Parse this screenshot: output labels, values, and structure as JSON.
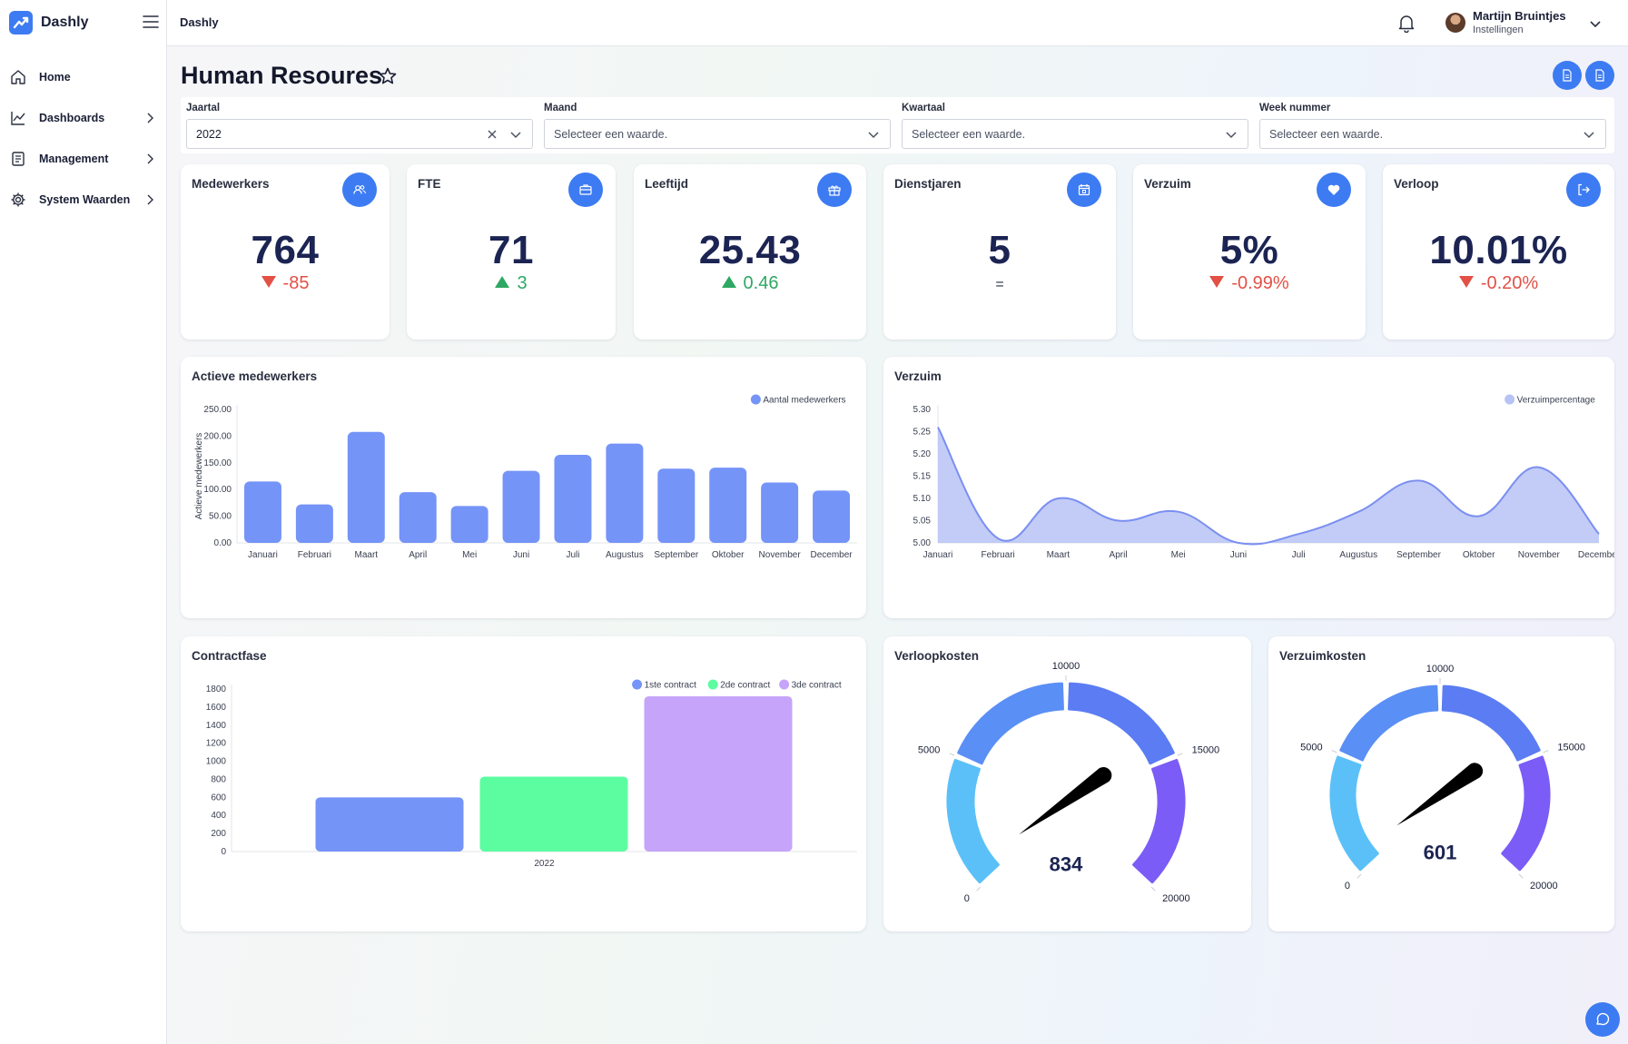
{
  "sidebar": {
    "brand": "Dashly",
    "items": [
      {
        "label": "Home",
        "icon": "home-icon"
      },
      {
        "label": "Dashboards",
        "icon": "chart-line-icon"
      },
      {
        "label": "Management",
        "icon": "document-icon"
      },
      {
        "label": "System Waarden",
        "icon": "gear-icon"
      }
    ]
  },
  "topbar": {
    "title": "Dashly",
    "user": {
      "name": "Martijn Bruintjes",
      "subtitle": "Instellingen"
    }
  },
  "page": {
    "title": "Human Resoures"
  },
  "filters": [
    {
      "label": "Jaartal",
      "value": "2022",
      "placeholder": ""
    },
    {
      "label": "Maand",
      "value": "",
      "placeholder": "Selecteer een waarde."
    },
    {
      "label": "Kwartaal",
      "value": "",
      "placeholder": "Selecteer een waarde."
    },
    {
      "label": "Week nummer",
      "value": "",
      "placeholder": "Selecteer een waarde."
    }
  ],
  "kpis": [
    {
      "title": "Medewerkers",
      "value": "764",
      "delta": "-85",
      "trend": "down",
      "icon": "users-icon"
    },
    {
      "title": "FTE",
      "value": "71",
      "delta": "3",
      "trend": "up",
      "icon": "briefcase-icon"
    },
    {
      "title": "Leeftijd",
      "value": "25.43",
      "delta": "0.46",
      "trend": "up",
      "icon": "gift-icon"
    },
    {
      "title": "Dienstjaren",
      "value": "5",
      "delta": "=",
      "trend": "equal",
      "icon": "calendar-icon"
    },
    {
      "title": "Verzuim",
      "value": "5%",
      "delta": "-0.99%",
      "trend": "down",
      "icon": "heart-icon"
    },
    {
      "title": "Verloop",
      "value": "10.01%",
      "delta": "-0.20%",
      "trend": "down",
      "icon": "logout-icon"
    }
  ],
  "colors": {
    "accent": "#3d7bf2",
    "bar": "#7594f8",
    "area": "#b7c3f5",
    "line": "#7b8ff0",
    "contract1": "#7594f8",
    "contract2": "#5cfca0",
    "contract3": "#c5a4fa",
    "up": "#2ea864",
    "down": "#e25046"
  },
  "cards": {
    "actieve": {
      "title": "Actieve medewerkers"
    },
    "verzuim": {
      "title": "Verzuim"
    },
    "contract": {
      "title": "Contractfase"
    },
    "verloopkosten": {
      "title": "Verloopkosten"
    },
    "verzuimkosten": {
      "title": "Verzuimkosten"
    }
  },
  "chart_data": [
    {
      "id": "actieve",
      "type": "bar",
      "title": "Actieve medewerkers",
      "ylabel": "Actieve medewerkers",
      "xlabel": "",
      "categories": [
        "Januari",
        "Februari",
        "Maart",
        "April",
        "Mei",
        "Juni",
        "Juli",
        "Augustus",
        "September",
        "Oktober",
        "November",
        "December"
      ],
      "series": [
        {
          "name": "Aantal medewerkers",
          "values": [
            115,
            72,
            208,
            95,
            69,
            135,
            165,
            186,
            139,
            141,
            113,
            98
          ]
        }
      ],
      "ylim": [
        0,
        250
      ],
      "yticks": [
        "0.00",
        "50.00",
        "100.00",
        "150.00",
        "200.00",
        "250.00"
      ],
      "legend": "top-right",
      "grid": false
    },
    {
      "id": "verzuim",
      "type": "area",
      "title": "Verzuim",
      "categories": [
        "Januari",
        "Februari",
        "Maart",
        "April",
        "Mei",
        "Juni",
        "Juli",
        "Augustus",
        "September",
        "Oktober",
        "November",
        "December"
      ],
      "series": [
        {
          "name": "Verzuimpercentage",
          "values": [
            5.26,
            5.01,
            5.1,
            5.05,
            5.07,
            5.0,
            5.02,
            5.07,
            5.14,
            5.06,
            5.17,
            5.02
          ]
        }
      ],
      "ylim": [
        5.0,
        5.3
      ],
      "yticks": [
        "5.00",
        "5.05",
        "5.10",
        "5.15",
        "5.20",
        "5.25",
        "5.30"
      ],
      "legend": "top-right",
      "grid": false
    },
    {
      "id": "contract",
      "type": "bar",
      "title": "Contractfase",
      "categories": [
        "2022"
      ],
      "series": [
        {
          "name": "1ste contract",
          "values": [
            600
          ]
        },
        {
          "name": "2de contract",
          "values": [
            830
          ]
        },
        {
          "name": "3de contract",
          "values": [
            1720
          ]
        }
      ],
      "ylim": [
        0,
        1800
      ],
      "yticks": [
        "0",
        "200",
        "400",
        "600",
        "800",
        "1000",
        "1200",
        "1400",
        "1600",
        "1800"
      ],
      "legend": "top-right",
      "grid": false
    },
    {
      "id": "verloopkosten",
      "type": "gauge",
      "title": "Verloopkosten",
      "value": 834,
      "value_label": "834",
      "min": 0,
      "max": 20000,
      "ticks": [
        "0",
        "5000",
        "10000",
        "15000",
        "20000"
      ]
    },
    {
      "id": "verzuimkosten",
      "type": "gauge",
      "title": "Verzuimkosten",
      "value": 601,
      "value_label": "601",
      "min": 0,
      "max": 20000,
      "ticks": [
        "0",
        "5000",
        "10000",
        "15000",
        "20000"
      ]
    }
  ]
}
